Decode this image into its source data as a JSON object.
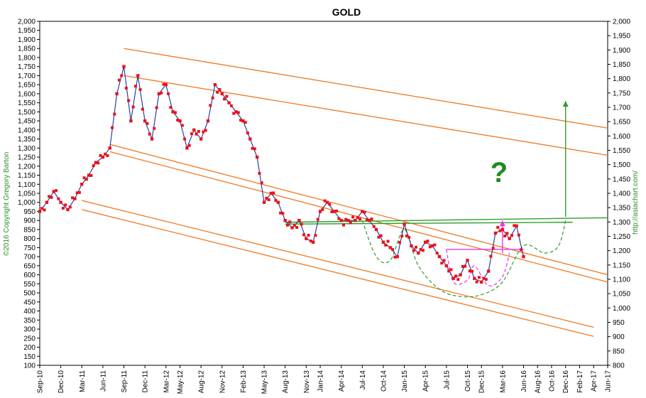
{
  "chart_data": {
    "type": "line",
    "title": "GOLD",
    "copyright": "©2016 Copyright Gregory Barton",
    "source_label": "http://asiachart.com/",
    "annotation": "?",
    "y_left_ticks": [
      "100",
      "150",
      "200",
      "250",
      "300",
      "350",
      "400",
      "450",
      "500",
      "550",
      "600",
      "650",
      "700",
      "750",
      "800",
      "850",
      "900",
      "950",
      "1,000",
      "1,050",
      "1,100",
      "1,150",
      "1,200",
      "1,250",
      "1,300",
      "1,350",
      "1,400",
      "1,450",
      "1,500",
      "1,550",
      "1,600",
      "1,650",
      "1,700",
      "1,750",
      "1,800",
      "1,850",
      "1,900",
      "1,950",
      "2,000"
    ],
    "y_right_ticks": [
      "800",
      "850",
      "900",
      "950",
      "1,000",
      "1,050",
      "1,100",
      "1,150",
      "1,200",
      "1,250",
      "1,300",
      "1,350",
      "1,400",
      "1,450",
      "1,500",
      "1,550",
      "1,600",
      "1,650",
      "1,700",
      "1,750",
      "1,800",
      "1,850",
      "1,900",
      "1,950",
      "2,000"
    ],
    "x_ticks": [
      "Sep-10",
      "Dec-10",
      "Mar-11",
      "Jun-11",
      "Sep-11",
      "Dec-11",
      "Mar-12",
      "May-12",
      "Aug-12",
      "Nov-12",
      "Feb-13",
      "May-13",
      "Aug-13",
      "Nov-13",
      "Jan-14",
      "Apr-14",
      "Jul-14",
      "Oct-14",
      "Jan-15",
      "Apr-15",
      "Jul-15",
      "Oct-15",
      "Dec-15",
      "Mar-16",
      "Jun-16",
      "Aug-16",
      "Oct-16",
      "Dec-16",
      "Feb-17",
      "Apr-17",
      "Jun-17"
    ],
    "ylim": [
      100,
      2000
    ],
    "y_right_lim": [
      800,
      2000
    ],
    "series": [
      {
        "color": "#e8141b",
        "x": [
          "Sep-10",
          "Oct-10",
          "Nov-10",
          "Dec-10",
          "Jan-11",
          "Feb-11",
          "Mar-11",
          "Apr-11",
          "May-11",
          "Jun-11",
          "Jul-11",
          "Aug-11",
          "Sep-11",
          "Oct-11",
          "Nov-11",
          "Dec-11",
          "Jan-12",
          "Feb-12",
          "Mar-12",
          "Apr-12",
          "May-12",
          "Jun-12",
          "Jul-12",
          "Aug-12",
          "Sep-12",
          "Oct-12",
          "Nov-12",
          "Dec-12",
          "Jan-13",
          "Feb-13",
          "Mar-13",
          "Apr-13",
          "May-13",
          "Jun-13",
          "Jul-13",
          "Aug-13",
          "Sep-13",
          "Oct-13",
          "Nov-13",
          "Dec-13",
          "Jan-14",
          "Feb-14",
          "Mar-14",
          "Apr-14",
          "May-14",
          "Jun-14",
          "Jul-14",
          "Aug-14",
          "Sep-14",
          "Oct-14",
          "Nov-14",
          "Dec-14",
          "Jan-15",
          "Feb-15",
          "Mar-15",
          "Apr-15",
          "May-15",
          "Jun-15",
          "Jul-15",
          "Aug-15",
          "Sep-15",
          "Oct-15",
          "Nov-15",
          "Dec-15",
          "Jan-16",
          "Feb-16",
          "Mar-16",
          "Apr-16",
          "May-16",
          "Jun-16"
        ],
        "y": [
          950,
          1000,
          1060,
          1000,
          960,
          1020,
          1100,
          1150,
          1220,
          1250,
          1300,
          1600,
          1750,
          1450,
          1700,
          1450,
          1350,
          1600,
          1650,
          1500,
          1450,
          1300,
          1400,
          1350,
          1450,
          1650,
          1600,
          1550,
          1500,
          1450,
          1350,
          1250,
          1000,
          1050,
          1000,
          900,
          860,
          900,
          800,
          780,
          950,
          1000,
          950,
          900,
          900,
          900,
          950,
          900,
          850,
          780,
          750,
          700,
          880,
          760,
          720,
          780,
          760,
          700,
          650,
          580,
          600,
          680,
          580,
          560,
          620,
          830,
          850,
          800,
          870,
          700
        ]
      }
    ],
    "channel_lines": [
      {
        "color": "#f07820",
        "points": [
          [
            "Sep-11",
            1850
          ],
          [
            "Jun-17",
            1410
          ]
        ]
      },
      {
        "color": "#f07820",
        "points": [
          [
            "Sep-11",
            1700
          ],
          [
            "Jun-17",
            1260
          ]
        ]
      },
      {
        "color": "#f07820",
        "points": [
          [
            "Jul-11",
            1320
          ],
          [
            "Jun-17",
            600
          ]
        ]
      },
      {
        "color": "#f07820",
        "points": [
          [
            "Jul-11",
            1280
          ],
          [
            "Jun-17",
            560
          ]
        ]
      },
      {
        "color": "#f07820",
        "points": [
          [
            "Mar-11",
            1010
          ],
          [
            "Apr-17",
            310
          ]
        ]
      },
      {
        "color": "#f07820",
        "points": [
          [
            "Mar-11",
            960
          ],
          [
            "Apr-17",
            260
          ]
        ]
      }
    ],
    "neckline": {
      "color": "#2e9e2e",
      "points": [
        [
          [
            "Aug-13",
            890
          ],
          [
            "Jun-17",
            915
          ]
        ],
        [
          [
            "Aug-13",
            880
          ],
          [
            "Jan-17",
            890
          ]
        ]
      ]
    },
    "cup_handle_green": {
      "color": "#2e9e2e",
      "points": [
        [
          "Jul-14",
          900
        ],
        [
          "Sep-14",
          700
        ],
        [
          "Nov-14",
          680
        ],
        [
          "Jan-15",
          850
        ],
        [
          "Mar-15",
          650
        ],
        [
          "Jun-15",
          520
        ],
        [
          "Sep-15",
          480
        ],
        [
          "Dec-15",
          490
        ],
        [
          "Mar-16",
          560
        ],
        [
          "Jun-16",
          760
        ],
        [
          "Sep-16",
          720
        ],
        [
          "Nov-16",
          760
        ],
        [
          "Dec-16",
          900
        ]
      ]
    },
    "cup_handle_pink": {
      "color": "#ee33ee",
      "points": [
        [
          "Jul-15",
          740
        ],
        [
          "Aug-15",
          560
        ],
        [
          "Oct-15",
          570
        ],
        [
          "Nov-15",
          650
        ],
        [
          "Jan-16",
          540
        ],
        [
          "Mar-16",
          590
        ],
        [
          "Apr-16",
          720
        ]
      ]
    },
    "pink_line": {
      "color": "#ee33ee",
      "points": [
        [
          "Jul-15",
          740
        ],
        [
          "Jun-16",
          740
        ]
      ]
    },
    "target_arrow": {
      "color": "#2e9e2e",
      "points": [
        [
          "Dec-16",
          920
        ],
        [
          "Dec-16",
          1560
        ]
      ]
    },
    "pink_arrow": {
      "color": "#ee33ee",
      "points": [
        [
          "Mar-16",
          720
        ],
        [
          "Mar-16",
          900
        ]
      ]
    }
  }
}
